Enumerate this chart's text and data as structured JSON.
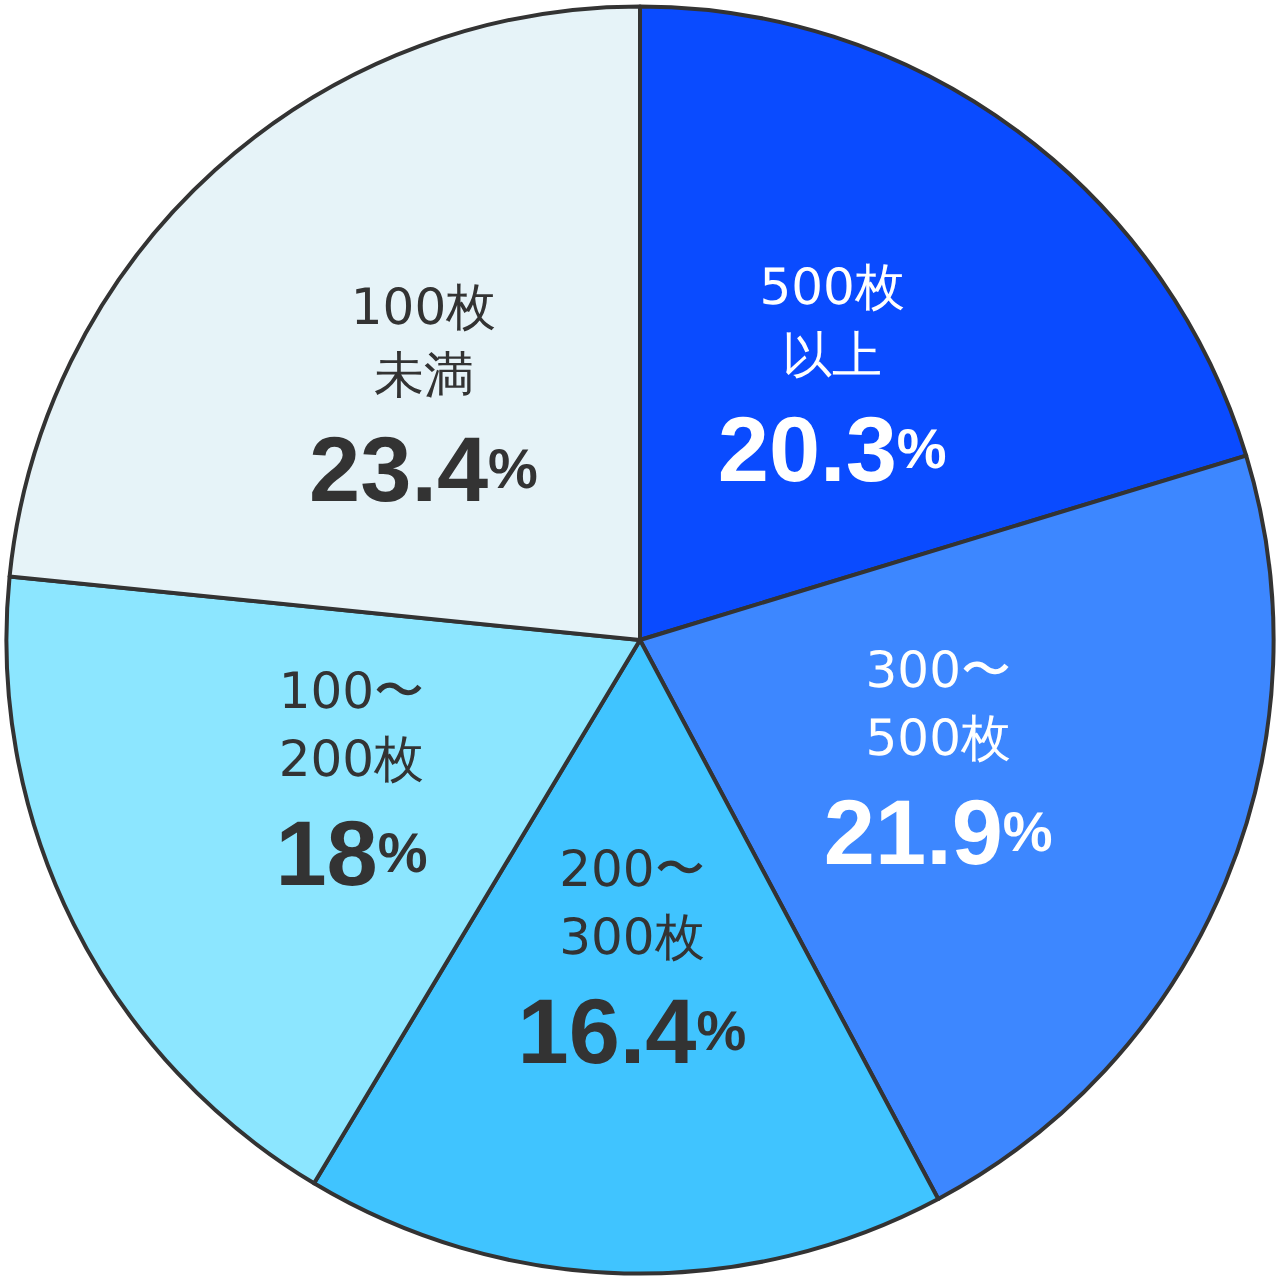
{
  "chart_data": {
    "type": "pie",
    "categories": [
      "500枚以上",
      "300〜500枚",
      "200〜300枚",
      "100〜200枚",
      "100枚未満"
    ],
    "values": [
      20.3,
      21.9,
      16.4,
      18,
      23.4
    ],
    "value_labels": [
      "20.3%",
      "21.9%",
      "16.4%",
      "18%",
      "23.4%"
    ],
    "colors": [
      "#0a4bff",
      "#3d87ff",
      "#40c4ff",
      "#8ce6ff",
      "#e6f3f8"
    ],
    "legend": false
  }
}
